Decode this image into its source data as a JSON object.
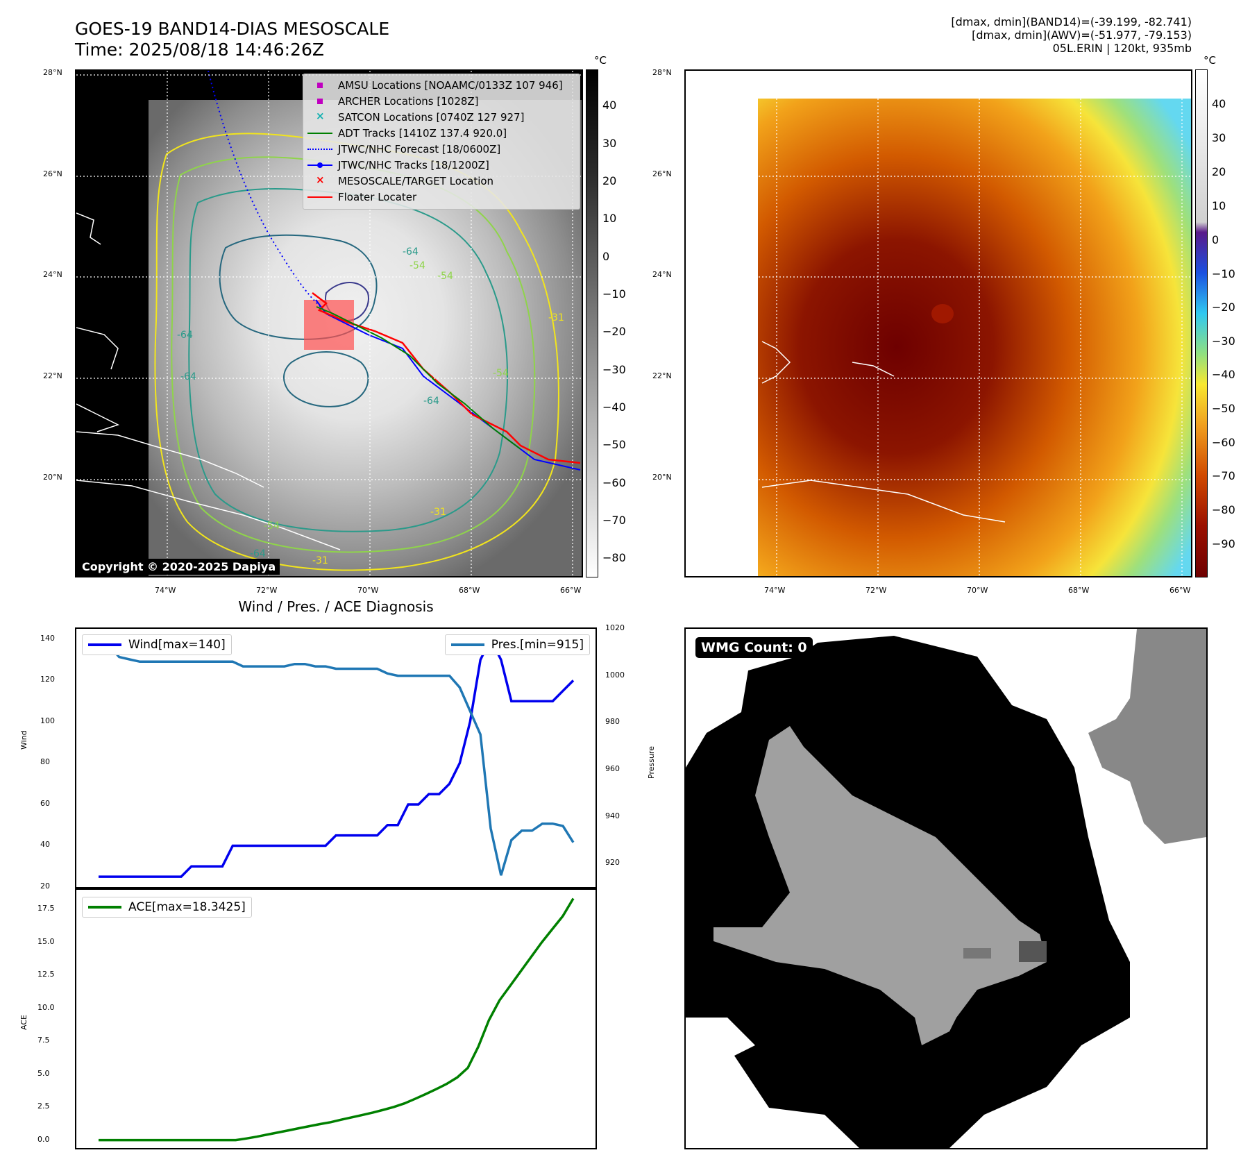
{
  "header": {
    "title_line1": "GOES-19 BAND14-DIAS MESOSCALE",
    "title_line2": "Time: 2025/08/18 14:46:26Z",
    "stats_line1": "[dmax, dmin](BAND14)=(-39.199, -82.741)",
    "stats_line2": "[dmax, dmin](AWV)=(-51.977, -79.153)",
    "stats_line3": "05L.ERIN | 120kt, 935mb"
  },
  "map_axes": {
    "lat_ticks": [
      "28°N",
      "26°N",
      "24°N",
      "22°N",
      "20°N"
    ],
    "lon_ticks": [
      "74°W",
      "72°W",
      "70°W",
      "68°W",
      "66°W"
    ]
  },
  "colorbar_gray": {
    "unit": "°C",
    "ticks": [
      "40",
      "30",
      "20",
      "10",
      "0",
      "−10",
      "−20",
      "−30",
      "−40",
      "−50",
      "−60",
      "−70",
      "−80"
    ]
  },
  "colorbar_color": {
    "unit": "°C",
    "ticks": [
      "40",
      "30",
      "20",
      "10",
      "0",
      "−10",
      "−20",
      "−30",
      "−40",
      "−50",
      "−60",
      "−70",
      "−80",
      "−90"
    ]
  },
  "map_legend": [
    {
      "label": "AMSU Locations [NOAAMC/0133Z 107 946]",
      "kind": "square",
      "color": "#c000c0"
    },
    {
      "label": "ARCHER Locations [1028Z]",
      "kind": "square",
      "color": "#c000c0"
    },
    {
      "label": "SATCON Locations [0740Z 127 927]",
      "kind": "x",
      "color": "#10b0b0"
    },
    {
      "label": "ADT Tracks [1410Z 137.4 920.0]",
      "kind": "line",
      "color": "#008000"
    },
    {
      "label": "JTWC/NHC Forecast [18/0600Z]",
      "kind": "dotted",
      "color": "#0000ff"
    },
    {
      "label": "JTWC/NHC Tracks [18/1200Z]",
      "kind": "line-dot",
      "color": "#0000ff"
    },
    {
      "label": "MESOSCALE/TARGET Location",
      "kind": "x",
      "color": "#ff0000"
    },
    {
      "label": "Floater Locater",
      "kind": "line",
      "color": "#ff0000"
    }
  ],
  "contour_labels": [
    "-64",
    "-54",
    "-54",
    "-31",
    "-64",
    "-64",
    "-64",
    "-54",
    "-31",
    "-64",
    "-54",
    "-31"
  ],
  "copyright": "Copyright © 2020-2025 Dapiya",
  "wind_panel_title": "Wind / Pres. / ACE Diagnosis",
  "chart_data": [
    {
      "type": "line",
      "title": "Wind / Pres. / ACE Diagnosis",
      "ylabel": "Wind",
      "ylabel_right": "Pressure",
      "ylim": [
        20,
        145
      ],
      "ylim_right": [
        910,
        1020
      ],
      "yticks": [
        20,
        40,
        60,
        80,
        100,
        120,
        140
      ],
      "yticks_right": [
        920,
        940,
        960,
        980,
        1000,
        1020
      ],
      "legend_left": "Wind[max=140]",
      "legend_right": "Pres.[min=915]",
      "series": [
        {
          "name": "Wind[max=140]",
          "color": "#0000ee",
          "values": [
            25,
            25,
            25,
            25,
            25,
            25,
            25,
            25,
            25,
            30,
            30,
            30,
            30,
            40,
            40,
            40,
            40,
            40,
            40,
            40,
            40,
            40,
            40,
            45,
            45,
            45,
            45,
            45,
            50,
            50,
            60,
            60,
            65,
            65,
            70,
            80,
            100,
            130,
            140,
            130,
            110,
            110,
            110,
            110,
            110,
            115,
            120
          ]
        },
        {
          "name": "Pres.[min=915]",
          "color": "#1f77b4",
          "axis": "right",
          "values": [
            1013,
            1013,
            1008,
            1007,
            1006,
            1006,
            1006,
            1006,
            1006,
            1006,
            1006,
            1006,
            1006,
            1006,
            1004,
            1004,
            1004,
            1004,
            1004,
            1005,
            1005,
            1004,
            1004,
            1003,
            1003,
            1003,
            1003,
            1003,
            1001,
            1000,
            1000,
            1000,
            1000,
            1000,
            1000,
            995,
            985,
            975,
            935,
            915,
            930,
            934,
            934,
            937,
            937,
            936,
            929
          ]
        }
      ]
    },
    {
      "type": "line",
      "ylabel": "ACE",
      "ylim": [
        -0.6,
        19.0
      ],
      "yticks": [
        0.0,
        2.5,
        5.0,
        7.5,
        10.0,
        12.5,
        15.0,
        17.5
      ],
      "ytick_labels": [
        "0.0",
        "2.5",
        "5.0",
        "7.5",
        "10.0",
        "12.5",
        "15.0",
        "17.5"
      ],
      "legend": "ACE[max=18.3425]",
      "series": [
        {
          "name": "ACE[max=18.3425]",
          "color": "#008000",
          "values": [
            0,
            0,
            0,
            0,
            0,
            0,
            0,
            0,
            0,
            0,
            0,
            0,
            0,
            0,
            0.12,
            0.26,
            0.42,
            0.58,
            0.74,
            0.9,
            1.06,
            1.22,
            1.36,
            1.55,
            1.73,
            1.91,
            2.09,
            2.3,
            2.52,
            2.79,
            3.13,
            3.49,
            3.87,
            4.27,
            4.76,
            5.48,
            7.1,
            9.1,
            10.6,
            11.7,
            12.8,
            13.9,
            15.0,
            16.0,
            17.0,
            18.3425
          ]
        }
      ]
    }
  ],
  "wmg": {
    "badge": "WMG Count: 0"
  }
}
